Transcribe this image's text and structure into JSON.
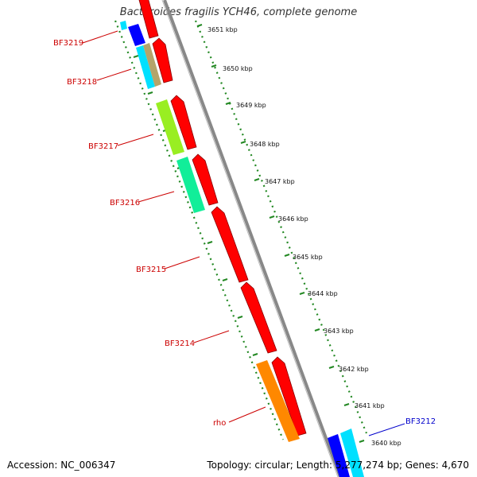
{
  "header": {
    "title": "Bacteroides fragilis YCH46, complete genome"
  },
  "footer": {
    "accession": "Accession: NC_006347",
    "summary": "Topology: circular; Length: 5,277,274 bp; Genes: 4,670"
  },
  "scale": {
    "ticks": [
      "3651 kbp",
      "3650 kbp",
      "3649 kbp",
      "3648 kbp",
      "3647 kbp",
      "3646 kbp",
      "3645 kbp",
      "3644 kbp",
      "3643 kbp",
      "3642 kbp",
      "3641 kbp",
      "3640 kbp"
    ]
  },
  "gene_labels": [
    {
      "name": "BF3219",
      "color": "#cc0000"
    },
    {
      "name": "BF3218",
      "color": "#cc0000"
    },
    {
      "name": "BF3217",
      "color": "#cc0000"
    },
    {
      "name": "BF3216",
      "color": "#cc0000"
    },
    {
      "name": "BF3215",
      "color": "#cc0000"
    },
    {
      "name": "BF3214",
      "color": "#cc0000"
    },
    {
      "name": "rho",
      "color": "#cc0000"
    },
    {
      "name": "BF3212",
      "color": "#0000cc"
    }
  ],
  "colors": {
    "forward_strand": "#ff0000",
    "backbone": "#888888",
    "tick_mark": "#228822",
    "cog_blue": "#0000ff",
    "cog_cyan": "#00e0ff",
    "cog_tan": "#b4a46a",
    "cog_lime": "#99ee22",
    "cog_teal": "#11ee99",
    "cog_orange": "#ff8800"
  }
}
